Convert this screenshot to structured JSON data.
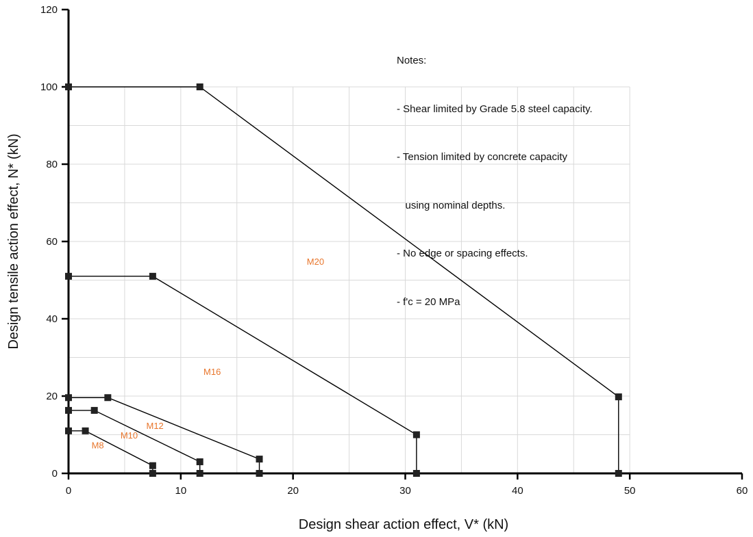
{
  "chart_data": {
    "type": "line",
    "title": "",
    "xlabel": "Design shear action effect, V* (kN)",
    "ylabel": "Design tensile action effect, N* (kN)",
    "xlim": [
      0,
      60
    ],
    "ylim": [
      0,
      120
    ],
    "x_ticks": [
      0,
      10,
      20,
      30,
      40,
      50,
      60
    ],
    "y_ticks": [
      0,
      20,
      40,
      60,
      80,
      100,
      120
    ],
    "grid": {
      "x_step": 5,
      "y_step": 10,
      "x_max": 50,
      "y_max": 100
    },
    "series": [
      {
        "name": "M8",
        "label_at": [
          2.6,
          6.5
        ],
        "points": [
          [
            0,
            11
          ],
          [
            1.5,
            11
          ],
          [
            7.5,
            2
          ],
          [
            7.5,
            0
          ]
        ]
      },
      {
        "name": "M10",
        "label_at": [
          5.4,
          9.0
        ],
        "points": [
          [
            0,
            16.3
          ],
          [
            2.3,
            16.3
          ],
          [
            11.7,
            3
          ],
          [
            11.7,
            0
          ]
        ]
      },
      {
        "name": "M12",
        "label_at": [
          7.7,
          11.5
        ],
        "points": [
          [
            0,
            19.6
          ],
          [
            3.5,
            19.6
          ],
          [
            17,
            3.7
          ],
          [
            17,
            0
          ]
        ]
      },
      {
        "name": "M16",
        "label_at": [
          12.8,
          25.5
        ],
        "points": [
          [
            0,
            51
          ],
          [
            7.5,
            51
          ],
          [
            31,
            10
          ],
          [
            31,
            0
          ]
        ]
      },
      {
        "name": "M20",
        "label_at": [
          22,
          54
        ],
        "points": [
          [
            0,
            100
          ],
          [
            11.7,
            100
          ],
          [
            49,
            19.8
          ],
          [
            49,
            0
          ]
        ]
      }
    ],
    "colors": {
      "lines": "#000000",
      "markers": "#222222",
      "series_labels": "#e8762c",
      "grid": "#d9d9d9"
    }
  },
  "notes": {
    "heading": "Notes:",
    "lines": [
      "- Shear limited by Grade 5.8 steel capacity.",
      "- Tension limited by concrete capacity",
      "   using nominal depths.",
      "- No edge or spacing effects.",
      "- f'c = 20 MPa"
    ]
  }
}
